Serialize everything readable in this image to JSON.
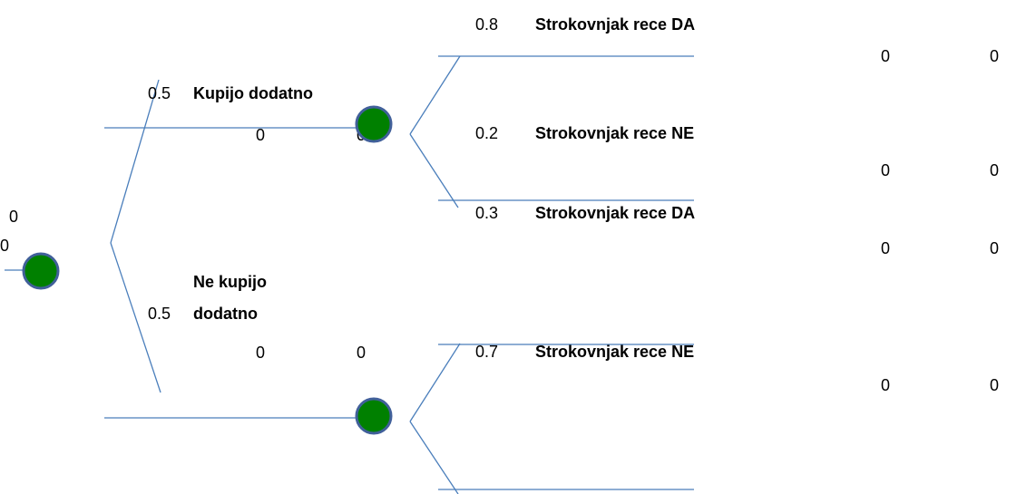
{
  "root": {
    "values": [
      0,
      0
    ]
  },
  "branches": [
    {
      "probability": 0.5,
      "label_lines": [
        "Kupijo dodatno"
      ],
      "values": [
        0,
        0
      ],
      "outcomes": [
        {
          "probability": 0.8,
          "label": "Strokovnjak rece DA",
          "values": [
            0,
            0
          ]
        },
        {
          "probability": 0.2,
          "label": "Strokovnjak rece NE",
          "values": [
            0,
            0
          ]
        }
      ]
    },
    {
      "probability": 0.5,
      "label_lines": [
        "Ne kupijo",
        "dodatno"
      ],
      "values": [
        0,
        0
      ],
      "outcomes": [
        {
          "probability": 0.3,
          "label": "Strokovnjak rece DA",
          "values": [
            0,
            0
          ]
        },
        {
          "probability": 0.7,
          "label": "Strokovnjak rece NE",
          "values": [
            0,
            0
          ]
        }
      ]
    }
  ]
}
